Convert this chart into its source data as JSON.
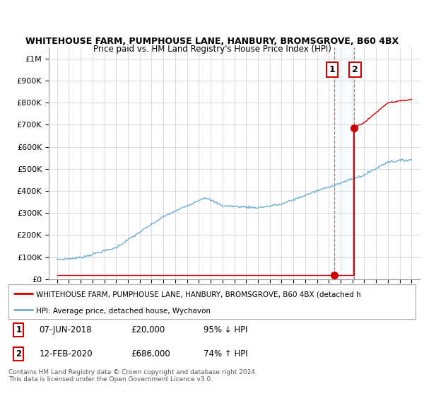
{
  "title": "WHITEHOUSE FARM, PUMPHOUSE LANE, HANBURY, BROMSGROVE, B60 4BX",
  "subtitle": "Price paid vs. HM Land Registry's House Price Index (HPI)",
  "hpi_color": "#6baed6",
  "price_color": "#cc0000",
  "year1": 2018.44,
  "price1": 20000,
  "year2": 2020.12,
  "price2": 686000,
  "legend_line1": "WHITEHOUSE FARM, PUMPHOUSE LANE, HANBURY, BROMSGROVE, B60 4BX (detached h",
  "legend_line2": "HPI: Average price, detached house, Wychavon",
  "footer": "Contains HM Land Registry data © Crown copyright and database right 2024.\nThis data is licensed under the Open Government Licence v3.0.",
  "ylim_max": 1050000,
  "xlim_min": 1994.3,
  "xlim_max": 2025.7,
  "background_color": "#ffffff",
  "grid_color": "#cccccc",
  "shade_color": "#ddeeff",
  "vline_color": "#cc4444"
}
